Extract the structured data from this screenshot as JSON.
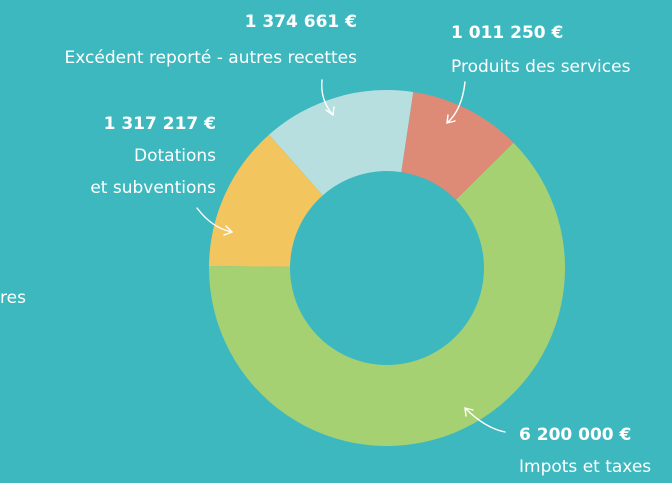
{
  "chart_data": {
    "type": "donut",
    "categories": [
      "Produits des services",
      "Impots et taxes",
      "Dotations\net subventions",
      "Excédent reporté - autres recettes"
    ],
    "values": [
      1011250,
      6200000,
      1317217,
      1374661
    ],
    "value_labels": [
      "1 011 250 €",
      "6 200 000 €",
      "1 317 217 €",
      "1 374 661 €"
    ],
    "colors": [
      "#dd8a76",
      "#a5d173",
      "#f2c55e",
      "#b7dfe0"
    ],
    "clipped_text": "res"
  }
}
